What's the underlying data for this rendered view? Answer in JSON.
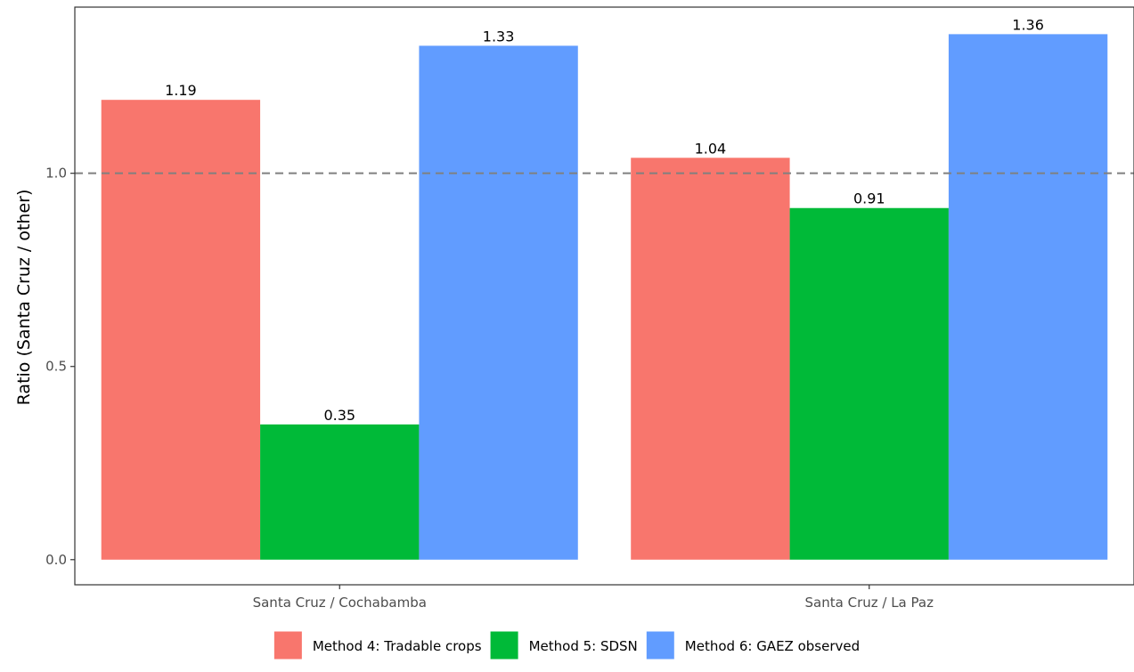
{
  "chart_data": {
    "type": "bar",
    "title": "",
    "xlabel": "",
    "ylabel": "Ratio (Santa Cruz / other)",
    "categories": [
      "Santa Cruz / Cochabamba",
      "Santa Cruz / La Paz"
    ],
    "series": [
      {
        "name": "Method 4: Tradable crops",
        "color": "#F8766D",
        "values": [
          1.19,
          1.04
        ],
        "labels": [
          "1.19",
          "1.04"
        ]
      },
      {
        "name": "Method 5: SDSN",
        "color": "#00BA38",
        "values": [
          0.35,
          0.91
        ],
        "labels": [
          "0.35",
          "0.91"
        ]
      },
      {
        "name": "Method 6: GAEZ observed",
        "color": "#619CFF",
        "values": [
          1.33,
          1.36
        ],
        "labels": [
          "1.33",
          "1.36"
        ]
      }
    ],
    "yticks": [
      0.0,
      0.5,
      1.0
    ],
    "ytick_labels": [
      "0.0",
      "0.5",
      "1.0"
    ],
    "ylim": [
      -0.065,
      1.43
    ],
    "reference_line": {
      "y": 1.0,
      "style": "dashed",
      "color": "#808080"
    },
    "grid": false,
    "legend_position": "bottom"
  }
}
